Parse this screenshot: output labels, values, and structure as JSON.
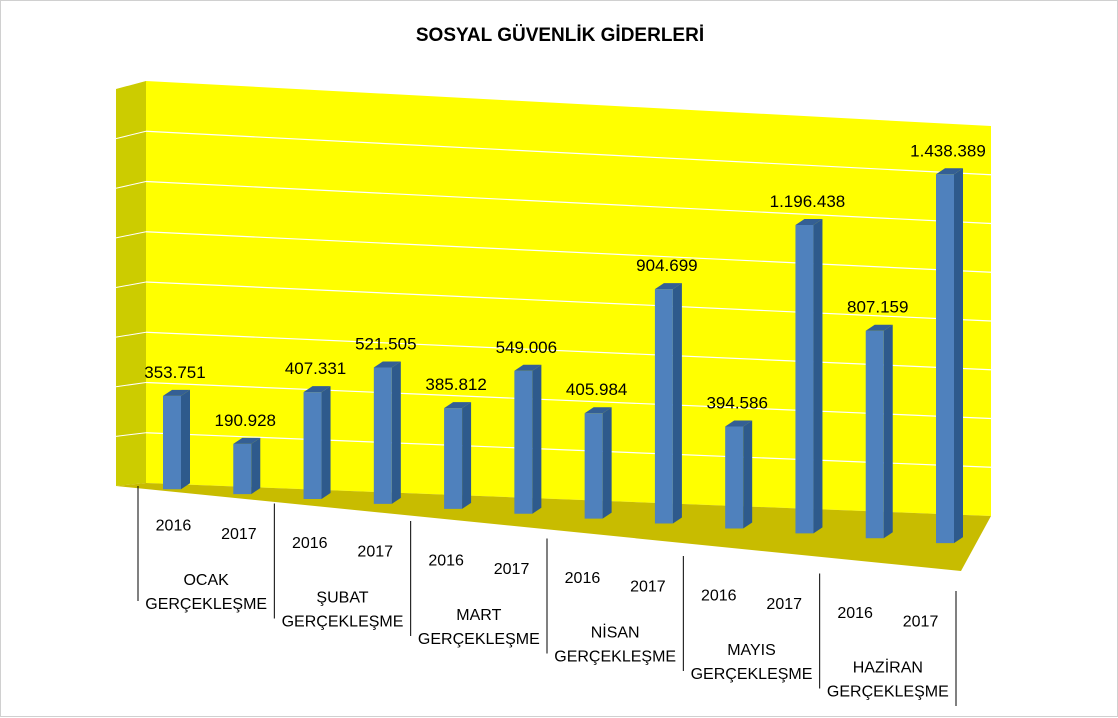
{
  "chart_data": {
    "type": "bar",
    "title": "SOSYAL GÜVENLİK GİDERLERİ",
    "categories": [
      {
        "year": "2016",
        "month_line1": "OCAK",
        "month_line2": "GERÇEKLEŞME",
        "value": 353751,
        "label": "353.751"
      },
      {
        "year": "2017",
        "month_line1": "OCAK",
        "month_line2": "GERÇEKLEŞME",
        "value": 190928,
        "label": "190.928"
      },
      {
        "year": "2016",
        "month_line1": "ŞUBAT",
        "month_line2": "GERÇEKLEŞME",
        "value": 407331,
        "label": "407.331"
      },
      {
        "year": "2017",
        "month_line1": "ŞUBAT",
        "month_line2": "GERÇEKLEŞME",
        "value": 521505,
        "label": "521.505"
      },
      {
        "year": "2016",
        "month_line1": "MART",
        "month_line2": "GERÇEKLEŞME",
        "value": 385812,
        "label": "385.812"
      },
      {
        "year": "2017",
        "month_line1": "MART",
        "month_line2": "GERÇEKLEŞME",
        "value": 549006,
        "label": "549.006"
      },
      {
        "year": "2016",
        "month_line1": "NİSAN",
        "month_line2": "GERÇEKLEŞME",
        "value": 405984,
        "label": "405.984"
      },
      {
        "year": "2017",
        "month_line1": "NİSAN",
        "month_line2": "GERÇEKLEŞME",
        "value": 904699,
        "label": "904.699"
      },
      {
        "year": "2016",
        "month_line1": "MAYIS",
        "month_line2": "GERÇEKLEŞME",
        "value": 394586,
        "label": "394.586"
      },
      {
        "year": "2017",
        "month_line1": "MAYIS",
        "month_line2": "GERÇEKLEŞME",
        "value": 1196438,
        "label": "1.196.438"
      },
      {
        "year": "2016",
        "month_line1": "HAZİRAN",
        "month_line2": "GERÇEKLEŞME",
        "value": 807159,
        "label": "807.159"
      },
      {
        "year": "2017",
        "month_line1": "HAZİRAN",
        "month_line2": "GERÇEKLEŞME",
        "value": 1438389,
        "label": "1.438.389"
      }
    ],
    "groups": [
      {
        "line1": "OCAK",
        "line2": "GERÇEKLEŞME"
      },
      {
        "line1": "ŞUBAT",
        "line2": "GERÇEKLEŞME"
      },
      {
        "line1": "MART",
        "line2": "GERÇEKLEŞME"
      },
      {
        "line1": "NİSAN",
        "line2": "GERÇEKLEŞME"
      },
      {
        "line1": "MAYIS",
        "line2": "GERÇEKLEŞME"
      },
      {
        "line1": "HAZİRAN",
        "line2": "GERÇEKLEŞME"
      }
    ],
    "ylim": [
      0,
      1600000
    ],
    "grid": true,
    "legend": "none",
    "colors": {
      "back_wall": "#ffff00",
      "side_wall": "#cccc00",
      "floor": "#c8bc00",
      "bar_front": "#4f81bd",
      "bar_side": "#2e5a8c",
      "bar_top": "#345f94"
    }
  }
}
